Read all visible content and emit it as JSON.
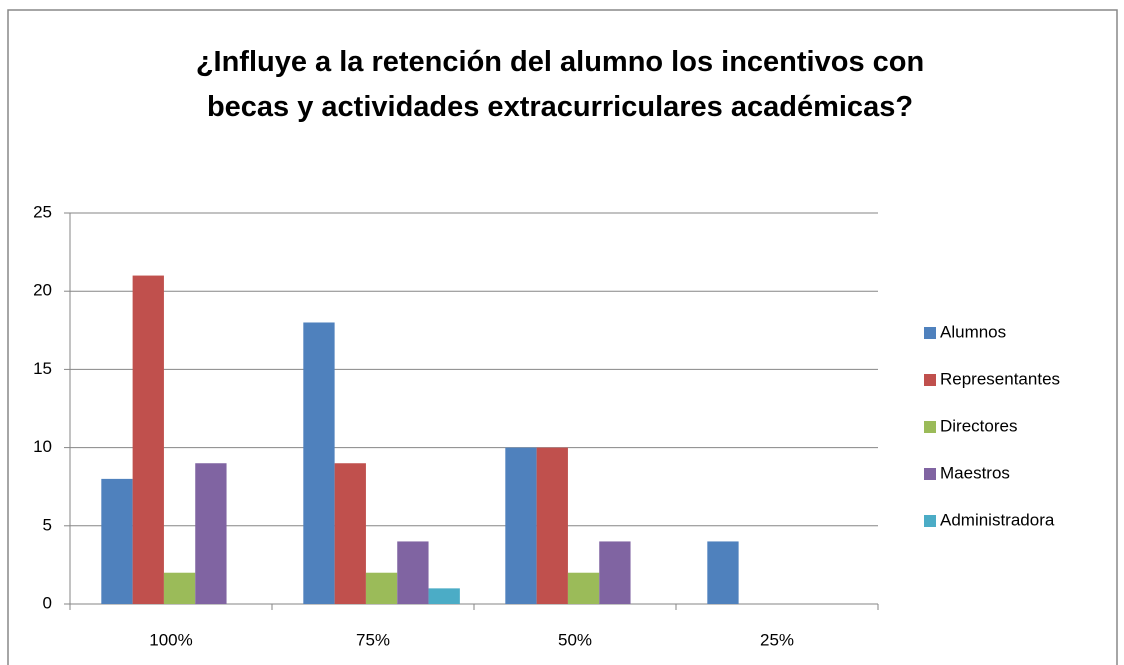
{
  "chart_data": {
    "type": "bar",
    "title": "¿Influye a la retención del alumno los incentivos con becas y actividades extracurriculares académicas?",
    "categories": [
      "100%",
      "75%",
      "50%",
      "25%"
    ],
    "series": [
      {
        "name": "Alumnos",
        "color": "#4f81bd",
        "values": [
          8,
          18,
          10,
          4
        ]
      },
      {
        "name": "Representantes",
        "color": "#c0504d",
        "values": [
          21,
          9,
          10,
          0
        ]
      },
      {
        "name": "Directores",
        "color": "#9bbb59",
        "values": [
          2,
          2,
          2,
          0
        ]
      },
      {
        "name": "Maestros",
        "color": "#8064a2",
        "values": [
          9,
          4,
          4,
          0
        ]
      },
      {
        "name": "Administradora",
        "color": "#4bacc6",
        "values": [
          0,
          1,
          0,
          0
        ]
      }
    ],
    "ylim": [
      0,
      25
    ],
    "yticks": [
      0,
      5,
      10,
      15,
      20,
      25
    ],
    "grid": true,
    "legend": "right"
  }
}
